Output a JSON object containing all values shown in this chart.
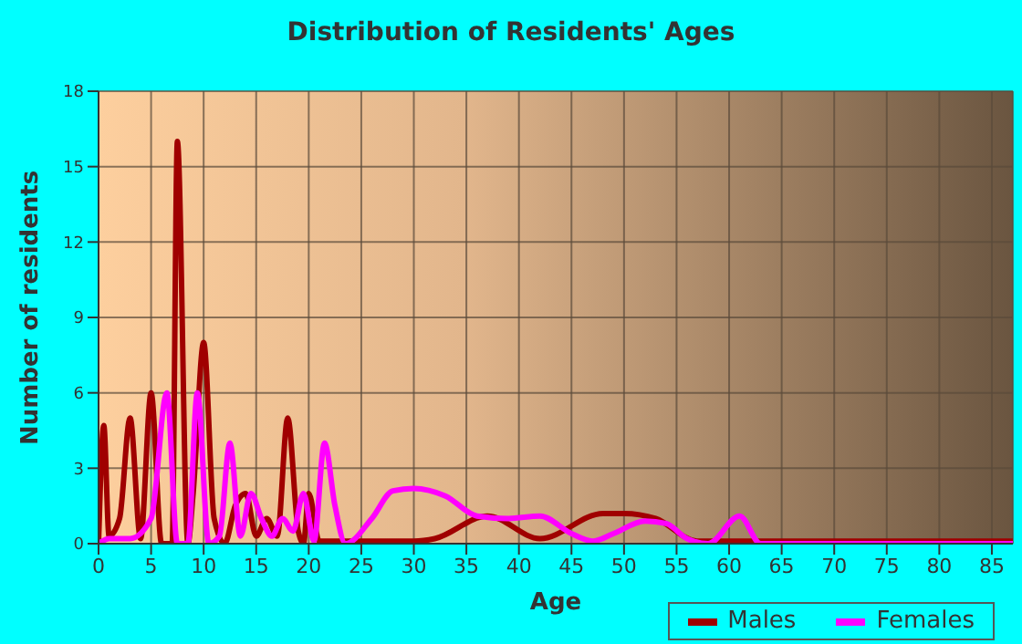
{
  "chart_data": {
    "type": "line",
    "title": "Distribution of Residents' Ages",
    "xlabel": "Age",
    "ylabel": "Number of residents",
    "xlim": [
      0,
      87
    ],
    "xticks": [
      0,
      5,
      10,
      15,
      20,
      25,
      30,
      35,
      40,
      45,
      50,
      55,
      60,
      65,
      70,
      75,
      80,
      85
    ],
    "ylim": [
      0,
      18
    ],
    "yticks": [
      0,
      3,
      6,
      9,
      12,
      15,
      18
    ],
    "grid": true,
    "legend": "bottom right",
    "marker": "none",
    "line_style": "solid",
    "series": [
      {
        "name": "Males",
        "color": "#a00000",
        "x": [
          0,
          0.5,
          1,
          2,
          3,
          4,
          5,
          6,
          7,
          7.5,
          8.5,
          9,
          10,
          11,
          12,
          13,
          14,
          15,
          16,
          17,
          18,
          19,
          19.5,
          20,
          21,
          22,
          25,
          30,
          32,
          37,
          42,
          48,
          50,
          53,
          57,
          58,
          87
        ],
        "values": [
          0,
          4.7,
          0.3,
          1,
          5,
          0.2,
          6,
          0,
          0,
          16,
          0,
          2,
          8,
          1,
          0,
          1.5,
          2,
          0.3,
          1,
          0.3,
          5,
          0.5,
          0,
          2,
          0.1,
          0.1,
          0.1,
          0.1,
          0.2,
          1.1,
          0.2,
          1.2,
          1.2,
          1,
          0.1,
          0.1,
          0.1
        ]
      },
      {
        "name": "Females",
        "color": "#ff00ff",
        "x": [
          0,
          1,
          3,
          5,
          6.5,
          7.5,
          8.5,
          9.4,
          10.5,
          11.5,
          12.5,
          13.5,
          14.5,
          15.5,
          16.5,
          17.5,
          18.5,
          19.5,
          20.5,
          21.5,
          22.5,
          23.5,
          26,
          28,
          30,
          33,
          36,
          39,
          42,
          45,
          47,
          49,
          52,
          54,
          56,
          58,
          61,
          63,
          87
        ],
        "values": [
          0,
          0.2,
          0.2,
          1,
          6,
          0,
          0,
          6,
          0,
          0.3,
          4,
          0.3,
          2,
          1,
          0.3,
          1,
          0.5,
          2,
          0.1,
          4,
          1.5,
          0,
          1,
          2.1,
          2.2,
          1.9,
          1.1,
          1,
          1.1,
          0.4,
          0.1,
          0.4,
          0.9,
          0.8,
          0.2,
          0,
          1.1,
          0,
          0
        ]
      }
    ]
  }
}
